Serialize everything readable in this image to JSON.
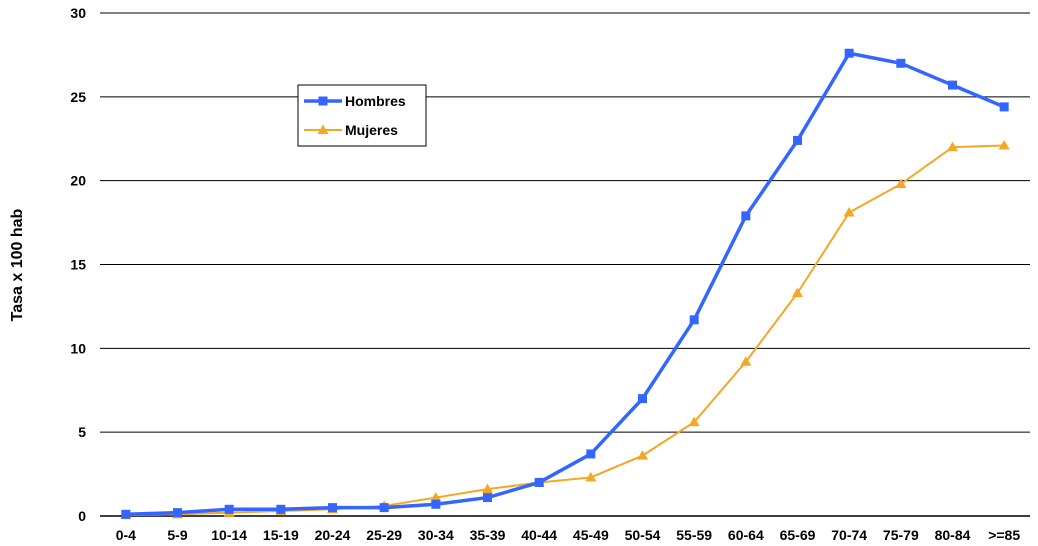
{
  "chart_data": {
    "type": "line",
    "title": "",
    "xlabel": "",
    "ylabel": "Tasa x 100 hab",
    "ylim": [
      0,
      30
    ],
    "yticks": [
      0,
      5,
      10,
      15,
      20,
      25,
      30
    ],
    "grid": "horizontal",
    "legend_position": "top-left",
    "categories": [
      "0-4",
      "5-9",
      "10-14",
      "15-19",
      "20-24",
      "25-29",
      "30-34",
      "35-39",
      "40-44",
      "45-49",
      "50-54",
      "55-59",
      "60-64",
      "65-69",
      "70-74",
      "75-79",
      "80-84",
      ">=85"
    ],
    "series": [
      {
        "name": "Hombres",
        "color": "#3366FF",
        "marker": "square",
        "values": [
          0.1,
          0.2,
          0.4,
          0.4,
          0.5,
          0.5,
          0.7,
          1.1,
          2.0,
          3.7,
          7.0,
          11.7,
          17.9,
          22.4,
          27.6,
          27.0,
          25.7,
          24.4
        ]
      },
      {
        "name": "Mujeres",
        "color": "#F5A623",
        "marker": "triangle",
        "values": [
          0.05,
          0.1,
          0.2,
          0.3,
          0.4,
          0.6,
          1.1,
          1.6,
          2.0,
          2.3,
          3.6,
          5.6,
          9.2,
          13.3,
          18.1,
          19.8,
          22.0,
          22.1
        ]
      }
    ]
  }
}
